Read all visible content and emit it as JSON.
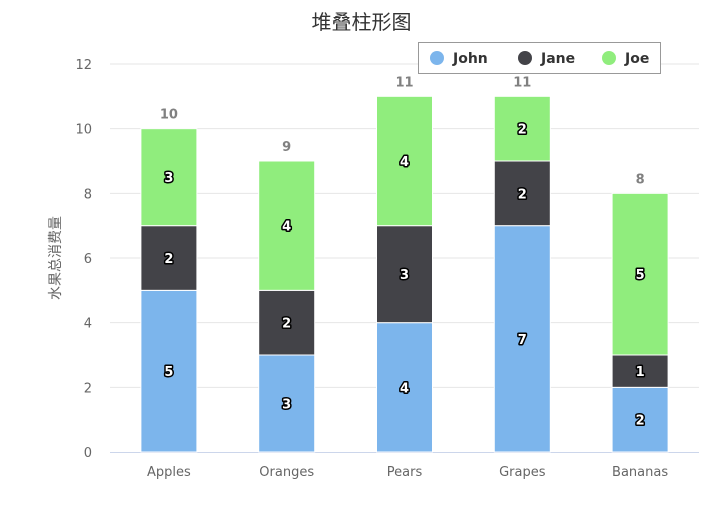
{
  "chart_data": {
    "type": "bar",
    "stacked": true,
    "title": "堆叠柱形图",
    "ylabel": "水果总消费量",
    "xlabel": "",
    "categories": [
      "Apples",
      "Oranges",
      "Pears",
      "Grapes",
      "Bananas"
    ],
    "series": [
      {
        "name": "John",
        "values": [
          5,
          3,
          4,
          7,
          2
        ],
        "color": "#7cb5ec"
      },
      {
        "name": "Jane",
        "values": [
          2,
          2,
          3,
          2,
          1
        ],
        "color": "#434348"
      },
      {
        "name": "Joe",
        "values": [
          3,
          4,
          4,
          2,
          5
        ],
        "color": "#90ed7d"
      }
    ],
    "totals": [
      10,
      9,
      11,
      11,
      8
    ],
    "ylim": [
      0,
      12
    ],
    "yticks": [
      0,
      2,
      4,
      6,
      8,
      10,
      12
    ],
    "grid": true,
    "legend_position": "top-right",
    "data_labels": true
  }
}
